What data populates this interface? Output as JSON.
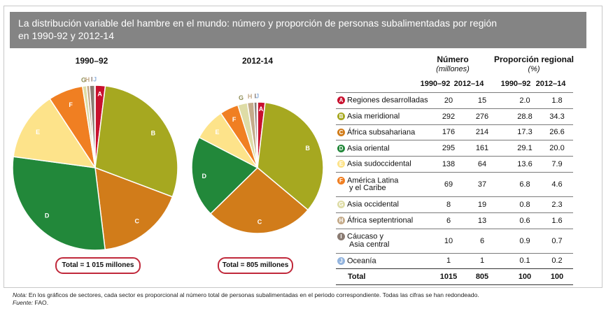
{
  "header": {
    "line1": "La distribución variable del hambre en el mundo: número y proporción de personas subalimentadas por región",
    "line2": "en 1990-92 y 2012-14"
  },
  "chart_data": [
    {
      "type": "pie",
      "title": "1990–92",
      "total_label": "Total = 1 015 millones",
      "slice_order": [
        "A",
        "B",
        "C",
        "D",
        "E",
        "F",
        "G",
        "H",
        "I",
        "J"
      ],
      "values": [
        20,
        292,
        176,
        295,
        138,
        69,
        8,
        6,
        10,
        1
      ]
    },
    {
      "type": "pie",
      "title": "2012-14",
      "total_label": "Total = 805 millones",
      "slice_order": [
        "A",
        "B",
        "C",
        "D",
        "E",
        "F",
        "G",
        "H",
        "I",
        "J"
      ],
      "values": [
        15,
        276,
        214,
        161,
        64,
        37,
        19,
        13,
        6,
        1
      ]
    }
  ],
  "colors": {
    "A": "#c8102e",
    "B": "#a6a820",
    "C": "#d17c1a",
    "D": "#22883a",
    "E": "#fde38a",
    "F": "#f07f22",
    "G": "#dedca6",
    "H": "#c5ab8a",
    "I": "#8a7b72",
    "J": "#93b4de"
  },
  "table": {
    "numero_header": "Número",
    "numero_unit": "(millones)",
    "prop_header": "Proporción regional",
    "prop_unit": "(%)",
    "sub": [
      "1990–92",
      "2012–14",
      "1990–92",
      "2012–14"
    ],
    "rows": [
      {
        "key": "A",
        "region": "Regiones desarrolladas",
        "n1": "20",
        "n2": "15",
        "p1": "2.0",
        "p2": "1.8"
      },
      {
        "key": "B",
        "region": "Asia meridional",
        "n1": "292",
        "n2": "276",
        "p1": "28.8",
        "p2": "34.3"
      },
      {
        "key": "C",
        "region": "África subsahariana",
        "n1": "176",
        "n2": "214",
        "p1": "17.3",
        "p2": "26.6"
      },
      {
        "key": "D",
        "region": "Asia oriental",
        "n1": "295",
        "n2": "161",
        "p1": "29.1",
        "p2": "20.0"
      },
      {
        "key": "E",
        "region": "Asia sudoccidental",
        "n1": "138",
        "n2": "64",
        "p1": "13.6",
        "p2": "7.9"
      },
      {
        "key": "F",
        "region": "América Latina y el Caribe",
        "region_l1": "América Latina",
        "region_l2": "y el Caribe",
        "n1": "69",
        "n2": "37",
        "p1": "6.8",
        "p2": "4.6"
      },
      {
        "key": "G",
        "region": "Asia occidental",
        "n1": "8",
        "n2": "19",
        "p1": "0.8",
        "p2": "2.3"
      },
      {
        "key": "H",
        "region": "África septentrional",
        "n1": "6",
        "n2": "13",
        "p1": "0.6",
        "p2": "1.6"
      },
      {
        "key": "I",
        "region": "Cáucaso y Asia central",
        "region_l1": "Cáucaso y",
        "region_l2": "Asia central",
        "n1": "10",
        "n2": "6",
        "p1": "0.9",
        "p2": "0.7"
      },
      {
        "key": "J",
        "region": "Oceanía",
        "n1": "1",
        "n2": "1",
        "p1": "0.1",
        "p2": "0.2"
      }
    ],
    "total": {
      "label": "Total",
      "n1": "1015",
      "n2": "805",
      "p1": "100",
      "p2": "100"
    }
  },
  "note": {
    "label": "Nota:",
    "text": " En los gráficos de sectores, cada sector es proporcional al número total de personas subalimentadas en el periodo correspondiente. Todas las cifras se han redondeado.",
    "source_label": "Fuente:",
    "source_text": " FAO."
  }
}
